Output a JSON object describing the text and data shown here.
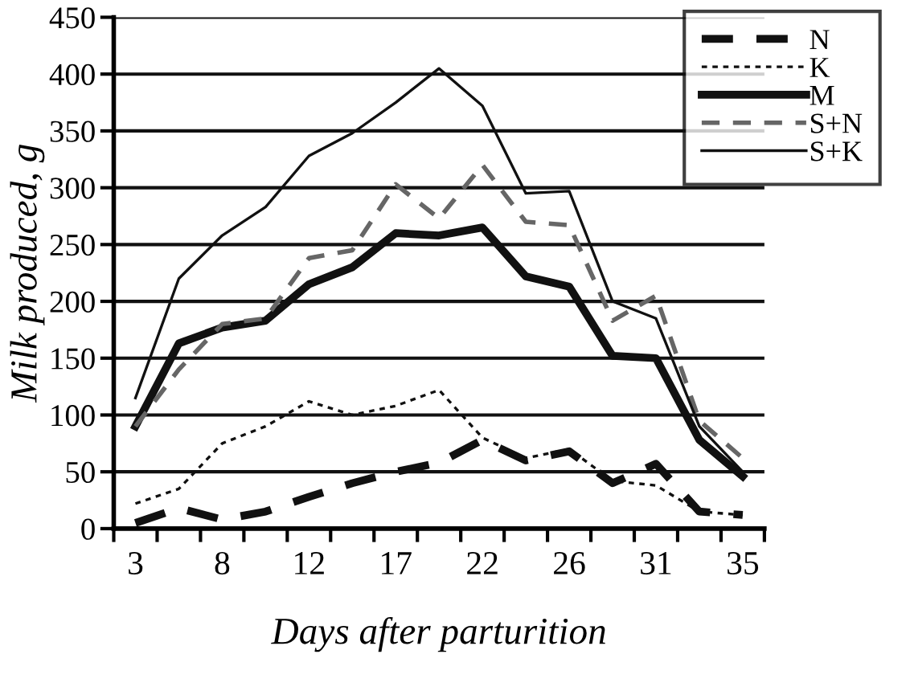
{
  "chart_data": {
    "type": "line",
    "xlabel": "Days after parturition",
    "ylabel": "Milk produced, g",
    "categories": [
      "3",
      null,
      "8",
      null,
      "12",
      null,
      "17",
      null,
      "22",
      null,
      "26",
      null,
      "31",
      null,
      "35"
    ],
    "ylim": [
      0,
      450
    ],
    "yticks": [
      0,
      50,
      100,
      150,
      200,
      250,
      300,
      350,
      400,
      450
    ],
    "grid": "y",
    "legend": "top right",
    "series": [
      {
        "name": "N",
        "color": "#111111",
        "line_style": "dashed",
        "values": [
          5,
          18,
          8,
          15,
          28,
          40,
          50,
          58,
          78,
          60,
          68,
          40,
          57,
          15,
          12
        ]
      },
      {
        "name": "K",
        "color": "#111111",
        "line_style": "dotted",
        "values": [
          22,
          35,
          75,
          90,
          112,
          100,
          108,
          122,
          80,
          62,
          70,
          42,
          38,
          15,
          12
        ]
      },
      {
        "name": "M",
        "color": "#111111",
        "line_style": "solid",
        "values": [
          90,
          163,
          177,
          183,
          215,
          230,
          260,
          258,
          265,
          222,
          213,
          152,
          150,
          78,
          46
        ]
      },
      {
        "name": "S+N",
        "color": "#666666",
        "line_style": "dashed",
        "values": [
          90,
          140,
          180,
          185,
          238,
          245,
          303,
          273,
          320,
          270,
          267,
          183,
          205,
          95,
          62
        ]
      },
      {
        "name": "S+K",
        "color": "#111111",
        "line_style": "solid",
        "values": [
          115,
          220,
          258,
          283,
          328,
          348,
          375,
          405,
          372,
          295,
          297,
          200,
          185,
          90,
          50
        ]
      }
    ]
  }
}
